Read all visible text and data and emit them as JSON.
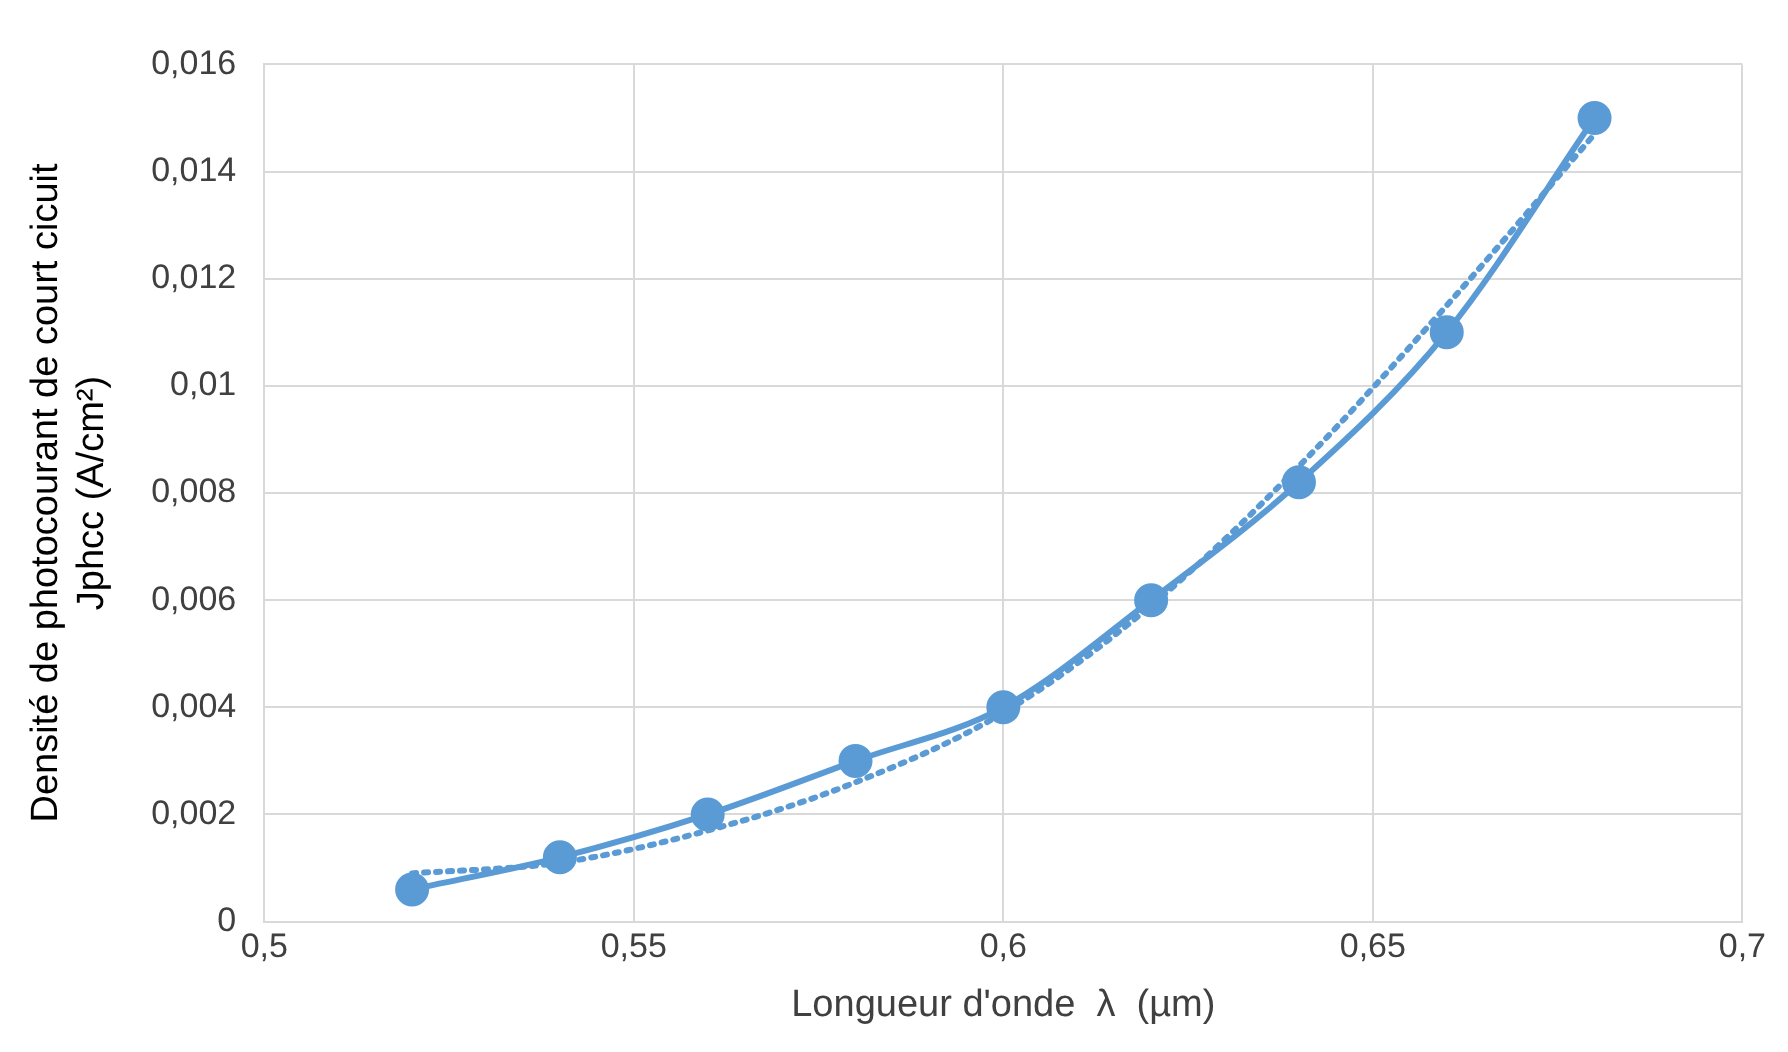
{
  "chart_data": {
    "type": "line",
    "xlabel": "Longueur d'onde  λ  (µm)",
    "ylabel": "Densité de photocourant de court cicuit\nJphcc (A/cm²)",
    "xlim": [
      0.5,
      0.7
    ],
    "xticks": [
      {
        "value": 0.5,
        "label": "0,5"
      },
      {
        "value": 0.55,
        "label": "0,55"
      },
      {
        "value": 0.6,
        "label": "0,6"
      },
      {
        "value": 0.65,
        "label": "0,65"
      },
      {
        "value": 0.7,
        "label": "0,7"
      }
    ],
    "ylim": [
      0,
      0.016
    ],
    "yticks": [
      0,
      {
        "value": 0.002,
        "label": "0,002"
      },
      {
        "value": 0.004,
        "label": "0,004"
      },
      {
        "value": 0.006,
        "label": "0,006"
      },
      {
        "value": 0.008,
        "label": "0,008"
      },
      {
        "value": 0.01,
        "label": "0,01"
      },
      {
        "value": 0.012,
        "label": "0,012"
      },
      {
        "value": 0.014,
        "label": "0,014"
      },
      {
        "value": 0.016,
        "label": "0,016"
      }
    ],
    "grid": true,
    "legend": false,
    "series": [
      {
        "type": "line",
        "color": "#5b9bd5",
        "marker": "circle",
        "line_style": "solid",
        "x": [
          0.52,
          0.54,
          0.56,
          0.58,
          0.6,
          0.62,
          0.64,
          0.66,
          0.68
        ],
        "values": [
          0.0006,
          0.0012,
          0.002,
          0.003,
          0.004,
          0.006,
          0.0082,
          0.011,
          0.015
        ]
      },
      {
        "type": "line",
        "color": "#5b9bd5",
        "marker": "none",
        "line_style": "dotted",
        "x": [
          0.52,
          0.54,
          0.56,
          0.58,
          0.6,
          0.62,
          0.64,
          0.66,
          0.68
        ],
        "values": [
          0.0009,
          0.0011,
          0.0017,
          0.0026,
          0.0039,
          0.0059,
          0.0085,
          0.0115,
          0.0147
        ]
      }
    ]
  }
}
